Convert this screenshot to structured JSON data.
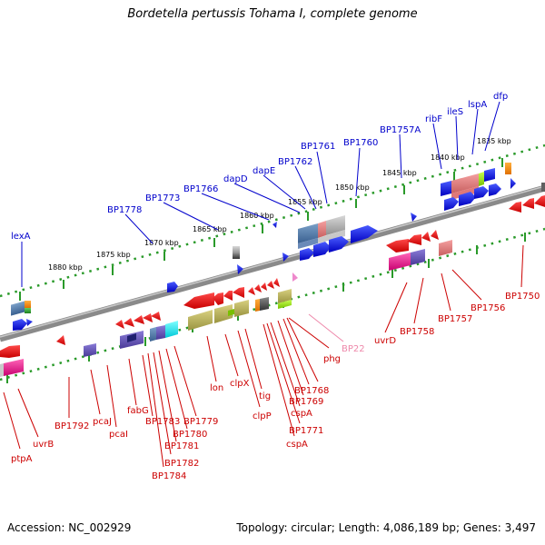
{
  "title": "Bordetella pertussis Tohama I, complete genome",
  "footer": {
    "accession": "Accession: NC_002929",
    "summary": "Topology: circular; Length: 4,086,189 bp; Genes: 3,497"
  },
  "colors": {
    "forward_label": "#0000cc",
    "reverse_label": "#cc0000",
    "rna_label": "#ee88aa",
    "ruler_tick": "#2a9a2a",
    "backbone": "#808080"
  },
  "ruler_labels": [
    {
      "name": "ruler-1880",
      "text": "1880 kbp"
    },
    {
      "name": "ruler-1875",
      "text": "1875 kbp"
    },
    {
      "name": "ruler-1870",
      "text": "1870 kbp"
    },
    {
      "name": "ruler-1865",
      "text": "1865 kbp"
    },
    {
      "name": "ruler-1860",
      "text": "1860 kbp"
    },
    {
      "name": "ruler-1855",
      "text": "1855 kbp"
    },
    {
      "name": "ruler-1850",
      "text": "1850 kbp"
    },
    {
      "name": "ruler-1845",
      "text": "1845 kbp"
    },
    {
      "name": "ruler-1840",
      "text": "1840 kbp"
    },
    {
      "name": "ruler-1835",
      "text": "1835 kbp"
    }
  ],
  "forward_genes": [
    "lexA",
    "BP1778",
    "BP1773",
    "BP1766",
    "dapD",
    "dapE",
    "BP1762",
    "BP1761",
    "BP1760",
    "BP1757A",
    "ribF",
    "ileS",
    "lspA",
    "dfp"
  ],
  "reverse_genes": [
    "ptpA",
    "uvrB",
    "BP1792",
    "pcaJ",
    "pcaI",
    "fabG",
    "BP1783",
    "BP1784",
    "BP1782",
    "BP1781",
    "BP1780",
    "BP1779",
    "lon",
    "clpX",
    "clpP",
    "tig",
    "cspA",
    "BP1771",
    "BP1769",
    "BP1768",
    "phg",
    "uvrD",
    "BP1758",
    "BP1757",
    "BP1756",
    "BP1750"
  ],
  "rna_genes": [
    "BP22"
  ]
}
